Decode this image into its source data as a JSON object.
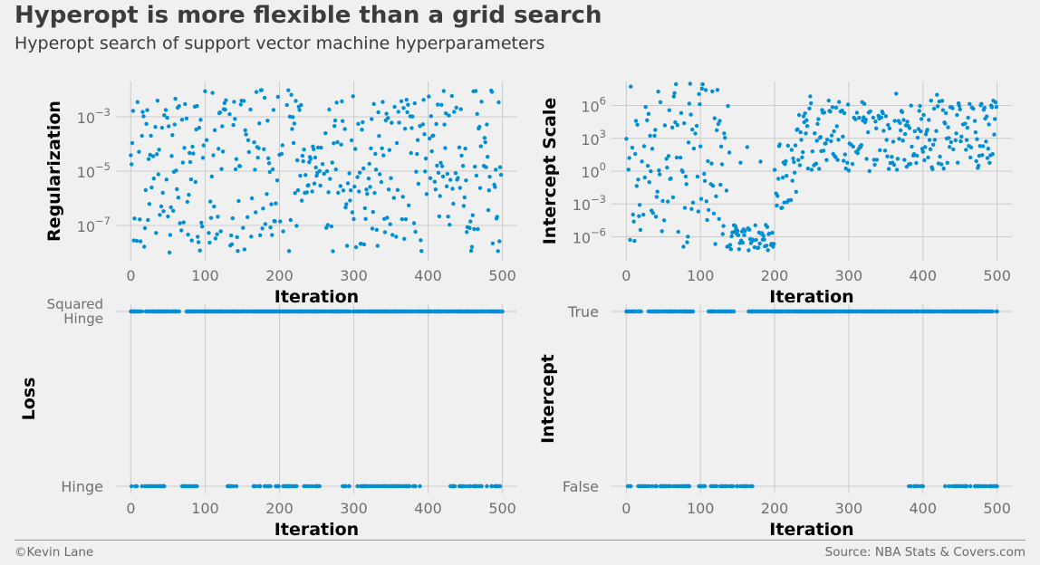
{
  "title": "Hyperopt is more flexible than a grid search",
  "subtitle": "Hyperopt search of support vector machine hyperparameters",
  "footer": {
    "credit": "©Kevin Lane",
    "source": "Source: NBA Stats & Covers.com"
  },
  "colors": {
    "background": "#f0f0f0",
    "point": "#008fd5",
    "grid": "#cbcbcb",
    "text": "#3c3c3c",
    "tick": "#707070"
  },
  "chart_data": [
    {
      "type": "scatter",
      "xlabel": "Iteration",
      "ylabel": "Regularization",
      "y_scale": "log",
      "xlim": [
        -20,
        520
      ],
      "ylim": [
        -8.3,
        -1.7
      ],
      "y_ticks": [
        -7,
        -5,
        -3
      ],
      "y_tick_labels": [
        "10^-7",
        "10^-5",
        "10^-3"
      ],
      "x_ticks": [
        0,
        100,
        200,
        300,
        400,
        500
      ],
      "x_tick_labels": [
        "0",
        "100",
        "200",
        "300",
        "400",
        "500"
      ],
      "n_points": 500,
      "y_log10_distribution": "uniform over [-8, -2] (approximate; individual points not readable)"
    },
    {
      "type": "scatter",
      "xlabel": "Iteration",
      "ylabel": "Intercept Scale",
      "y_scale": "log",
      "xlim": [
        -20,
        520
      ],
      "ylim": [
        -8.2,
        8.2
      ],
      "y_ticks": [
        -6,
        -3,
        0,
        3,
        6
      ],
      "y_tick_labels": [
        "10^-6",
        "10^-3",
        "10^0",
        "10^3",
        "10^6"
      ],
      "x_ticks": [
        0,
        100,
        200,
        300,
        400,
        500
      ],
      "x_tick_labels": [
        "0",
        "100",
        "200",
        "300",
        "400",
        "500"
      ],
      "n_points": 500,
      "y_log10_distribution": "wide spread (-7 to 8) for iterations 0-140, concentrated near 10^-6 to 10^-7 for 140-200, then mostly 10^0 to 10^6 after 200 (approximate)"
    },
    {
      "type": "scatter",
      "xlabel": "Iteration",
      "ylabel": "Loss",
      "categories": [
        "Hinge",
        "Squared Hinge"
      ],
      "xlim": [
        -20,
        520
      ],
      "x_ticks": [
        0,
        100,
        200,
        300,
        400,
        500
      ],
      "x_tick_labels": [
        "0",
        "100",
        "200",
        "300",
        "400",
        "500"
      ],
      "hinge_iteration_ranges": [
        [
          0,
          45
        ],
        [
          65,
          90
        ],
        [
          130,
          145
        ],
        [
          165,
          255
        ],
        [
          285,
          395
        ],
        [
          430,
          500
        ]
      ],
      "squared_hinge_iteration_ranges": [
        [
          0,
          15
        ],
        [
          20,
          65
        ],
        [
          75,
          500
        ]
      ]
    },
    {
      "type": "scatter",
      "xlabel": "Iteration",
      "ylabel": "Intercept",
      "categories": [
        "False",
        "True"
      ],
      "xlim": [
        -20,
        520
      ],
      "x_ticks": [
        0,
        100,
        200,
        300,
        400,
        500
      ],
      "x_tick_labels": [
        "0",
        "100",
        "200",
        "300",
        "400",
        "500"
      ],
      "false_iteration_ranges": [
        [
          0,
          10
        ],
        [
          15,
          85
        ],
        [
          95,
          170
        ],
        [
          380,
          400
        ],
        [
          430,
          500
        ]
      ],
      "true_iteration_ranges": [
        [
          0,
          20
        ],
        [
          30,
          90
        ],
        [
          110,
          145
        ],
        [
          165,
          500
        ]
      ]
    }
  ]
}
